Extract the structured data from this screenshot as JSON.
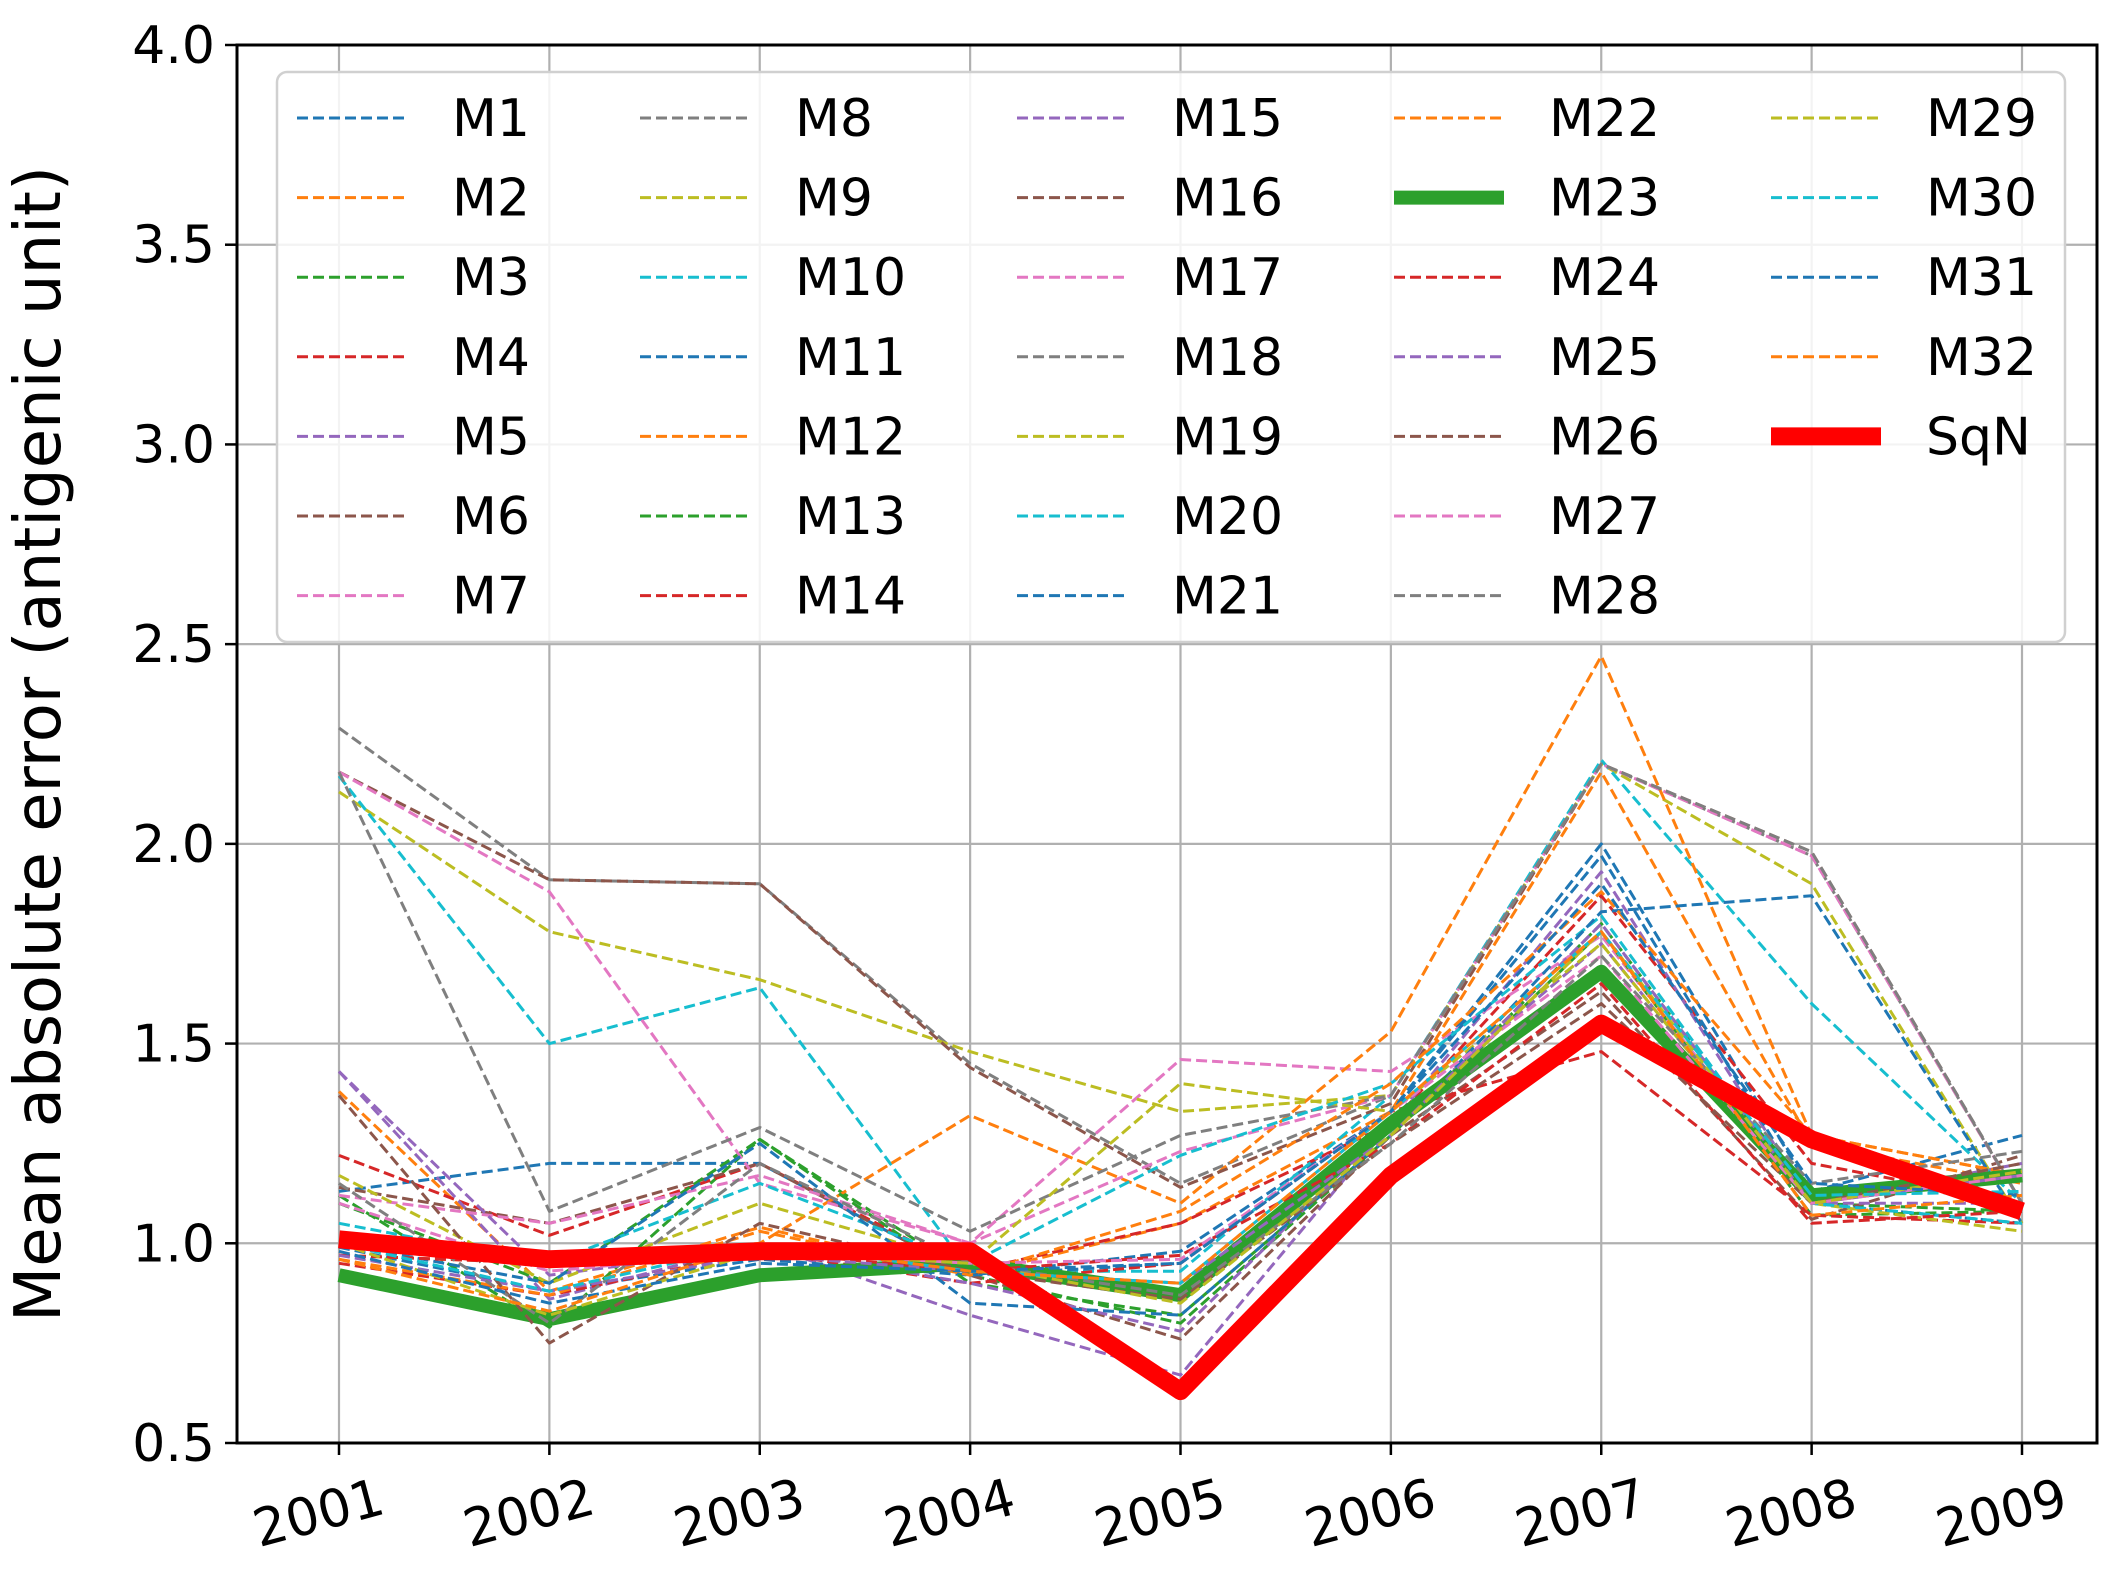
{
  "chart_data": {
    "type": "line",
    "title": "",
    "xlabel": "",
    "ylabel": "Mean absolute error (antigenic unit)",
    "x": [
      "2001",
      "2002",
      "2003",
      "2004",
      "2005",
      "2006",
      "2007",
      "2008",
      "2009"
    ],
    "ylim": [
      0.5,
      4.0
    ],
    "yticks": [
      "0.5",
      "1.0",
      "1.5",
      "2.0",
      "2.5",
      "3.0",
      "3.5",
      "4.0"
    ],
    "grid": true,
    "legend_placement": "upper",
    "legend_columns": 5,
    "series": [
      {
        "name": "M1",
        "color": "#1f77b4",
        "style": "dashed",
        "values": [
          1.13,
          1.2,
          1.2,
          0.92,
          0.98,
          1.33,
          2.0,
          1.13,
          1.27
        ]
      },
      {
        "name": "M2",
        "color": "#ff7f0e",
        "style": "dashed",
        "values": [
          1.38,
          0.88,
          1.04,
          0.92,
          1.05,
          1.33,
          2.18,
          1.25,
          1.15
        ]
      },
      {
        "name": "M3",
        "color": "#2ca02c",
        "style": "dashed",
        "values": [
          1.12,
          0.79,
          1.26,
          0.92,
          0.8,
          1.27,
          1.8,
          1.1,
          1.08
        ]
      },
      {
        "name": "M4",
        "color": "#d62728",
        "style": "dashed",
        "values": [
          1.22,
          1.02,
          1.2,
          0.93,
          1.05,
          1.3,
          1.87,
          1.2,
          1.1
        ]
      },
      {
        "name": "M5",
        "color": "#9467bd",
        "style": "dashed",
        "values": [
          1.43,
          0.86,
          1.0,
          0.82,
          0.67,
          1.3,
          1.93,
          1.1,
          1.2
        ]
      },
      {
        "name": "M6",
        "color": "#8c564b",
        "style": "dashed",
        "values": [
          1.14,
          1.05,
          1.2,
          0.92,
          0.76,
          1.27,
          1.63,
          1.06,
          1.22
        ]
      },
      {
        "name": "M7",
        "color": "#e377c2",
        "style": "dashed",
        "values": [
          1.12,
          1.05,
          1.17,
          1.0,
          1.46,
          1.43,
          1.77,
          1.1,
          1.17
        ]
      },
      {
        "name": "M8",
        "color": "#7f7f7f",
        "style": "dashed",
        "values": [
          2.29,
          1.91,
          1.9,
          1.45,
          1.15,
          1.37,
          2.2,
          1.97,
          1.1
        ]
      },
      {
        "name": "M9",
        "color": "#bcbd22",
        "style": "dashed",
        "values": [
          2.13,
          1.78,
          1.66,
          1.48,
          1.33,
          1.37,
          2.2,
          1.9,
          1.05
        ]
      },
      {
        "name": "M10",
        "color": "#17becf",
        "style": "dashed",
        "values": [
          2.17,
          1.5,
          1.64,
          0.93,
          0.93,
          1.37,
          2.21,
          1.6,
          1.1
        ]
      },
      {
        "name": "M11",
        "color": "#1f77b4",
        "style": "dashed",
        "values": [
          0.99,
          0.88,
          0.96,
          0.92,
          0.95,
          1.33,
          1.97,
          1.1,
          1.05
        ]
      },
      {
        "name": "M12",
        "color": "#ff7f0e",
        "style": "dashed",
        "values": [
          0.97,
          0.95,
          1.0,
          1.32,
          1.1,
          1.53,
          2.47,
          1.27,
          1.17
        ]
      },
      {
        "name": "M13",
        "color": "#2ca02c",
        "style": "dashed",
        "values": [
          1.1,
          0.9,
          1.26,
          0.9,
          0.82,
          1.27,
          1.78,
          1.07,
          1.08
        ]
      },
      {
        "name": "M14",
        "color": "#d62728",
        "style": "dashed",
        "values": [
          0.95,
          0.87,
          0.98,
          0.9,
          0.95,
          1.33,
          1.48,
          1.07,
          1.05
        ]
      },
      {
        "name": "M15",
        "color": "#9467bd",
        "style": "dashed",
        "values": [
          1.43,
          0.92,
          0.99,
          0.9,
          0.78,
          1.3,
          1.75,
          1.1,
          1.1
        ]
      },
      {
        "name": "M16",
        "color": "#8c564b",
        "style": "dashed",
        "values": [
          2.18,
          1.91,
          1.9,
          1.44,
          1.14,
          1.35,
          2.2,
          1.98,
          1.1
        ]
      },
      {
        "name": "M17",
        "color": "#e377c2",
        "style": "dashed",
        "values": [
          2.18,
          1.88,
          1.15,
          1.0,
          1.23,
          1.37,
          2.2,
          1.97,
          1.1
        ]
      },
      {
        "name": "M18",
        "color": "#7f7f7f",
        "style": "dashed",
        "values": [
          2.18,
          1.08,
          1.29,
          1.03,
          1.27,
          1.37,
          2.2,
          1.98,
          1.1
        ]
      },
      {
        "name": "M19",
        "color": "#bcbd22",
        "style": "dashed",
        "values": [
          1.17,
          0.9,
          1.1,
          0.95,
          1.4,
          1.33,
          1.75,
          1.1,
          1.03
        ]
      },
      {
        "name": "M20",
        "color": "#17becf",
        "style": "dashed",
        "values": [
          1.05,
          0.95,
          1.15,
          0.95,
          1.22,
          1.4,
          1.82,
          1.1,
          1.05
        ]
      },
      {
        "name": "M21",
        "color": "#1f77b4",
        "style": "dashed",
        "values": [
          1.0,
          0.9,
          1.25,
          0.85,
          0.82,
          1.27,
          1.83,
          1.87,
          1.05
        ]
      },
      {
        "name": "M22",
        "color": "#ff7f0e",
        "style": "dashed",
        "values": [
          0.96,
          0.87,
          1.03,
          0.92,
          1.08,
          1.4,
          1.88,
          1.27,
          1.17
        ]
      },
      {
        "name": "M23",
        "color": "#2ca02c",
        "style": "solid",
        "width": 14,
        "values": [
          0.92,
          0.81,
          0.92,
          0.95,
          0.87,
          1.3,
          1.68,
          1.12,
          1.17
        ]
      },
      {
        "name": "M24",
        "color": "#d62728",
        "style": "dashed",
        "values": [
          0.97,
          0.95,
          0.98,
          0.93,
          0.97,
          1.25,
          1.65,
          1.05,
          1.08
        ]
      },
      {
        "name": "M25",
        "color": "#9467bd",
        "style": "dashed",
        "values": [
          0.97,
          0.88,
          0.97,
          0.93,
          0.9,
          1.27,
          1.8,
          1.1,
          1.17
        ]
      },
      {
        "name": "M26",
        "color": "#8c564b",
        "style": "dashed",
        "values": [
          1.37,
          0.75,
          1.05,
          0.93,
          0.86,
          1.25,
          1.6,
          1.1,
          1.2
        ]
      },
      {
        "name": "M27",
        "color": "#e377c2",
        "style": "dashed",
        "values": [
          1.1,
          0.93,
          0.98,
          0.95,
          0.96,
          1.33,
          1.72,
          1.1,
          1.17
        ]
      },
      {
        "name": "M28",
        "color": "#7f7f7f",
        "style": "dashed",
        "values": [
          1.15,
          0.8,
          1.2,
          0.95,
          0.87,
          1.25,
          1.72,
          1.15,
          1.23
        ]
      },
      {
        "name": "M29",
        "color": "#bcbd22",
        "style": "dashed",
        "values": [
          1.0,
          0.82,
          0.98,
          0.95,
          0.85,
          1.27,
          1.78,
          1.1,
          1.18
        ]
      },
      {
        "name": "M30",
        "color": "#17becf",
        "style": "dashed",
        "values": [
          1.0,
          0.88,
          1.0,
          0.93,
          0.9,
          1.33,
          1.78,
          1.12,
          1.13
        ]
      },
      {
        "name": "M31",
        "color": "#1f77b4",
        "style": "dashed",
        "values": [
          0.98,
          0.85,
          0.95,
          0.93,
          0.95,
          1.33,
          1.9,
          1.15,
          1.12
        ]
      },
      {
        "name": "M32",
        "color": "#ff7f0e",
        "style": "dashed",
        "values": [
          0.96,
          0.83,
          1.0,
          0.93,
          0.9,
          1.33,
          1.78,
          1.07,
          1.12
        ]
      },
      {
        "name": "SqN",
        "color": "#ff0000",
        "style": "solid",
        "width": 18,
        "values": [
          1.01,
          0.96,
          0.98,
          0.98,
          0.63,
          1.17,
          1.55,
          1.26,
          1.08
        ]
      }
    ]
  }
}
